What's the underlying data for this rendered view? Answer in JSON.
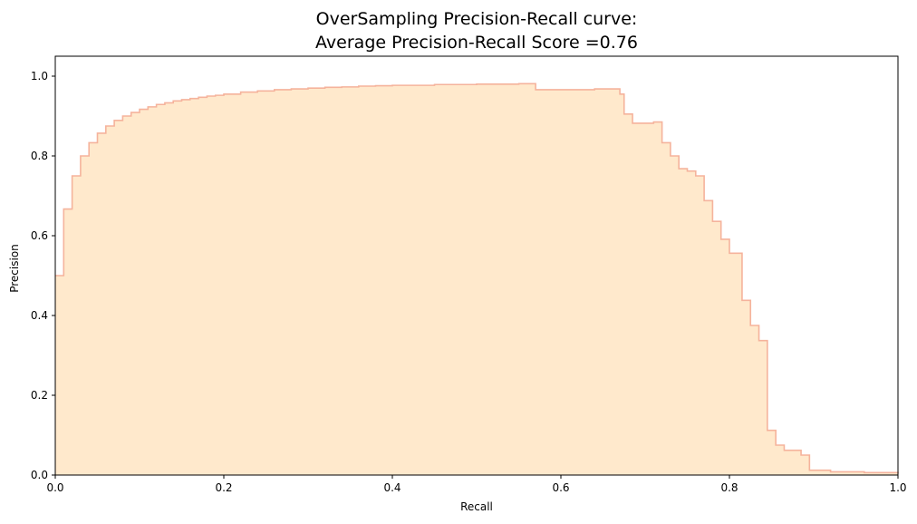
{
  "chart_data": {
    "type": "area",
    "title": "OverSampling Precision-Recall curve:",
    "subtitle": "Average Precision-Recall Score =0.76",
    "xlabel": "Recall",
    "ylabel": "Precision",
    "xlim": [
      0.0,
      1.0
    ],
    "ylim": [
      0.0,
      1.05
    ],
    "xticks": [
      "0.0",
      "0.2",
      "0.4",
      "0.6",
      "0.8",
      "1.0"
    ],
    "yticks": [
      "0.0",
      "0.2",
      "0.4",
      "0.6",
      "0.8",
      "1.0"
    ],
    "grid": false,
    "legend": "none",
    "step": "post",
    "colors": {
      "fill": "#ffe9cc",
      "line": "#f5b39c",
      "frame": "#000000"
    },
    "series": [
      {
        "x": [
          0.0,
          0.01,
          0.02,
          0.03,
          0.04,
          0.05,
          0.06,
          0.07,
          0.08,
          0.09,
          0.1,
          0.11,
          0.12,
          0.13,
          0.14,
          0.15,
          0.16,
          0.17,
          0.18,
          0.19,
          0.2,
          0.22,
          0.24,
          0.26,
          0.28,
          0.3,
          0.32,
          0.34,
          0.36,
          0.38,
          0.4,
          0.45,
          0.5,
          0.55,
          0.57,
          0.64,
          0.67,
          0.675,
          0.685,
          0.71,
          0.72,
          0.73,
          0.74,
          0.75,
          0.76,
          0.77,
          0.78,
          0.79,
          0.8,
          0.815,
          0.825,
          0.835,
          0.845,
          0.855,
          0.865,
          0.885,
          0.895,
          0.92,
          0.96,
          1.0
        ],
        "y": [
          0.5,
          0.667,
          0.75,
          0.8,
          0.833,
          0.857,
          0.875,
          0.889,
          0.9,
          0.909,
          0.917,
          0.923,
          0.929,
          0.933,
          0.938,
          0.941,
          0.944,
          0.947,
          0.95,
          0.952,
          0.955,
          0.96,
          0.963,
          0.966,
          0.968,
          0.97,
          0.972,
          0.973,
          0.975,
          0.976,
          0.977,
          0.979,
          0.98,
          0.981,
          0.966,
          0.968,
          0.955,
          0.905,
          0.882,
          0.885,
          0.833,
          0.8,
          0.768,
          0.762,
          0.75,
          0.688,
          0.636,
          0.591,
          0.556,
          0.438,
          0.375,
          0.337,
          0.112,
          0.075,
          0.062,
          0.05,
          0.012,
          0.008,
          0.006,
          0.004
        ]
      }
    ]
  }
}
